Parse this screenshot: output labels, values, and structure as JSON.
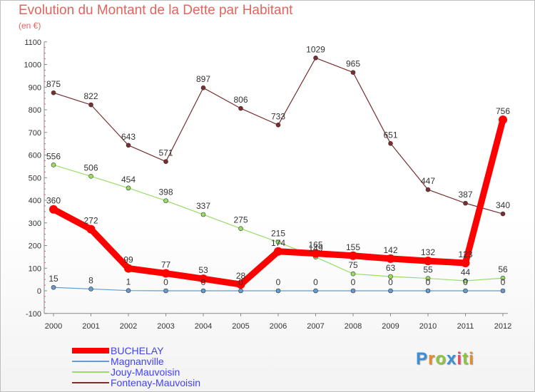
{
  "chart_data": {
    "type": "line",
    "title": "Evolution du Montant de la Dette par Habitant",
    "unit_label": "(en €)",
    "x": [
      "2000",
      "2001",
      "2002",
      "2003",
      "2004",
      "2005",
      "2006",
      "2007",
      "2008",
      "2009",
      "2010",
      "2011",
      "2012"
    ],
    "ylim": [
      -100,
      1100
    ],
    "yticks": [
      -100,
      0,
      100,
      200,
      300,
      400,
      500,
      600,
      700,
      800,
      900,
      1000,
      1100
    ],
    "grid": false,
    "legend_position": "bottom-left",
    "series": [
      {
        "name": "BUCHELAY",
        "color": "#ff0000",
        "values": [
          360,
          272,
          99,
          77,
          53,
          28,
          174,
          165,
          155,
          142,
          132,
          123,
          756
        ]
      },
      {
        "name": "Magnanville",
        "color": "#6699cc",
        "values": [
          15,
          8,
          1,
          0,
          0,
          0,
          0,
          0,
          0,
          0,
          0,
          0,
          0
        ]
      },
      {
        "name": "Jouy-Mauvoisin",
        "color": "#99dd66",
        "values": [
          556,
          506,
          454,
          398,
          337,
          275,
          215,
          149,
          75,
          63,
          55,
          44,
          56
        ]
      },
      {
        "name": "Fontenay-Mauvoisin",
        "color": "#7a2e2e",
        "values": [
          875,
          822,
          643,
          571,
          897,
          806,
          733,
          1029,
          965,
          651,
          447,
          387,
          340
        ]
      }
    ]
  },
  "logo": {
    "letters": [
      "P",
      "r",
      "o",
      "x",
      "i",
      "t",
      "i"
    ],
    "colors": [
      "#3a8fd8",
      "#e88a2a",
      "#8cc63f",
      "#3a8fd8",
      "#e84a5f",
      "#8cc63f",
      "#e88a2a"
    ]
  }
}
